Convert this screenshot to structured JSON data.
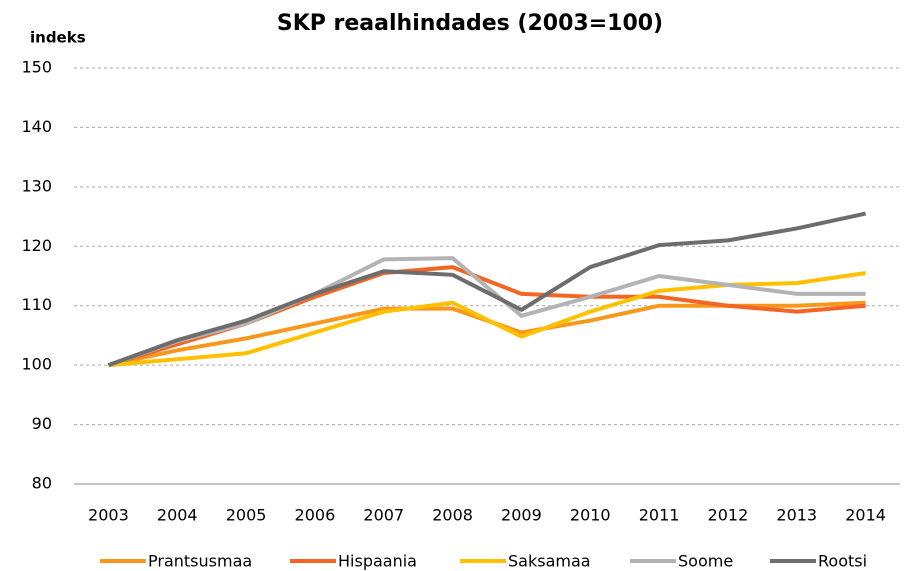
{
  "chart_data": {
    "type": "line",
    "title": "SKP reaalhindades (2003=100)",
    "y_label": "indeks",
    "categories": [
      "2003",
      "2004",
      "2005",
      "2006",
      "2007",
      "2008",
      "2009",
      "2010",
      "2011",
      "2012",
      "2013",
      "2014"
    ],
    "series": [
      {
        "name": "Prantsusmaa",
        "color": "#f7981d",
        "values": [
          100,
          102.5,
          104.5,
          107,
          109.5,
          109.5,
          105.5,
          107.5,
          110,
          110,
          110,
          110.5
        ]
      },
      {
        "name": "Hispaania",
        "color": "#f26522",
        "values": [
          100,
          103.5,
          107,
          111.5,
          115.5,
          116.5,
          112,
          111.5,
          111.5,
          110,
          109,
          110
        ]
      },
      {
        "name": "Saksamaa",
        "color": "#ffc000",
        "values": [
          100,
          101,
          102,
          105.5,
          109,
          110.5,
          104.8,
          109,
          112.5,
          113.5,
          113.8,
          115.5
        ]
      },
      {
        "name": "Soome",
        "color": "#b3b3b3",
        "values": [
          100,
          104,
          107,
          112,
          117.8,
          118,
          108.3,
          111.5,
          115,
          113.5,
          112,
          112
        ]
      },
      {
        "name": "Rootsi",
        "color": "#6d6d6d",
        "values": [
          100,
          104.2,
          107.5,
          112,
          115.8,
          115.2,
          109.3,
          116.5,
          120.2,
          121,
          123,
          125.5
        ]
      }
    ],
    "ylim": [
      80,
      150
    ],
    "yticks": [
      80,
      90,
      100,
      110,
      120,
      130,
      140,
      150
    ],
    "grid": true,
    "legend": "bottom"
  }
}
